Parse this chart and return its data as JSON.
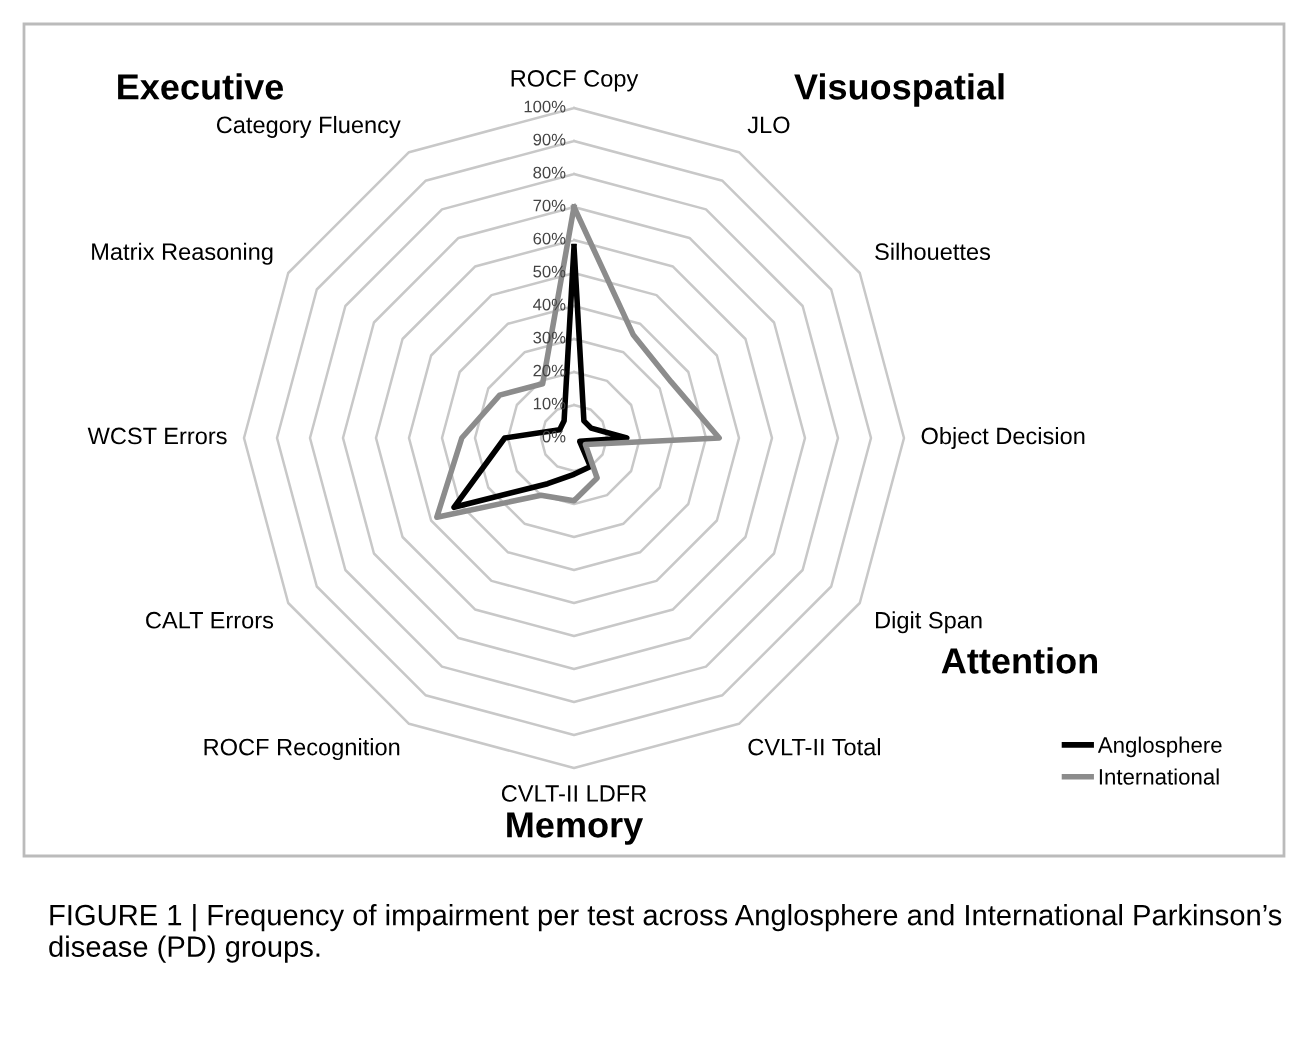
{
  "chart_data": {
    "type": "radar",
    "categories": [
      "ROCF Copy",
      "JLO",
      "Silhouettes",
      "Object Decision",
      "Digit Span",
      "CVLT-II Total",
      "CVLT-II LDFR",
      "ROCF Recognition",
      "CALT Errors",
      "WCST Errors",
      "Matrix Reasoning",
      "Category Fluency"
    ],
    "series": [
      {
        "name": "Anglosphere",
        "color": "#000000",
        "values": [
          58,
          6,
          6,
          16,
          2,
          10,
          11,
          16,
          42,
          21,
          5,
          6
        ]
      },
      {
        "name": "International",
        "color": "#8c8c8c",
        "values": [
          70,
          36,
          34,
          44,
          4,
          14,
          19,
          20,
          48,
          34,
          26,
          19
        ]
      }
    ],
    "ylim": [
      0,
      100
    ],
    "yticks": [
      {
        "value": 0,
        "label": "0%"
      },
      {
        "value": 10,
        "label": "10%"
      },
      {
        "value": 20,
        "label": "20%"
      },
      {
        "value": 30,
        "label": "30%"
      },
      {
        "value": 40,
        "label": "40%"
      },
      {
        "value": 50,
        "label": "50%"
      },
      {
        "value": 60,
        "label": "60%"
      },
      {
        "value": 70,
        "label": "70%"
      },
      {
        "value": 80,
        "label": "80%"
      },
      {
        "value": 90,
        "label": "90%"
      },
      {
        "value": 100,
        "label": "100%"
      }
    ],
    "grid": true,
    "legend": "bottom right",
    "marker": "none",
    "line_style": "solid",
    "annotations": [
      "Executive",
      "Visuospatial",
      "Attention",
      "Memory",
      "FIGURE 1 | Frequency of impairment per test across Anglosphere and International Parkinson’s disease (PD) groups."
    ]
  }
}
